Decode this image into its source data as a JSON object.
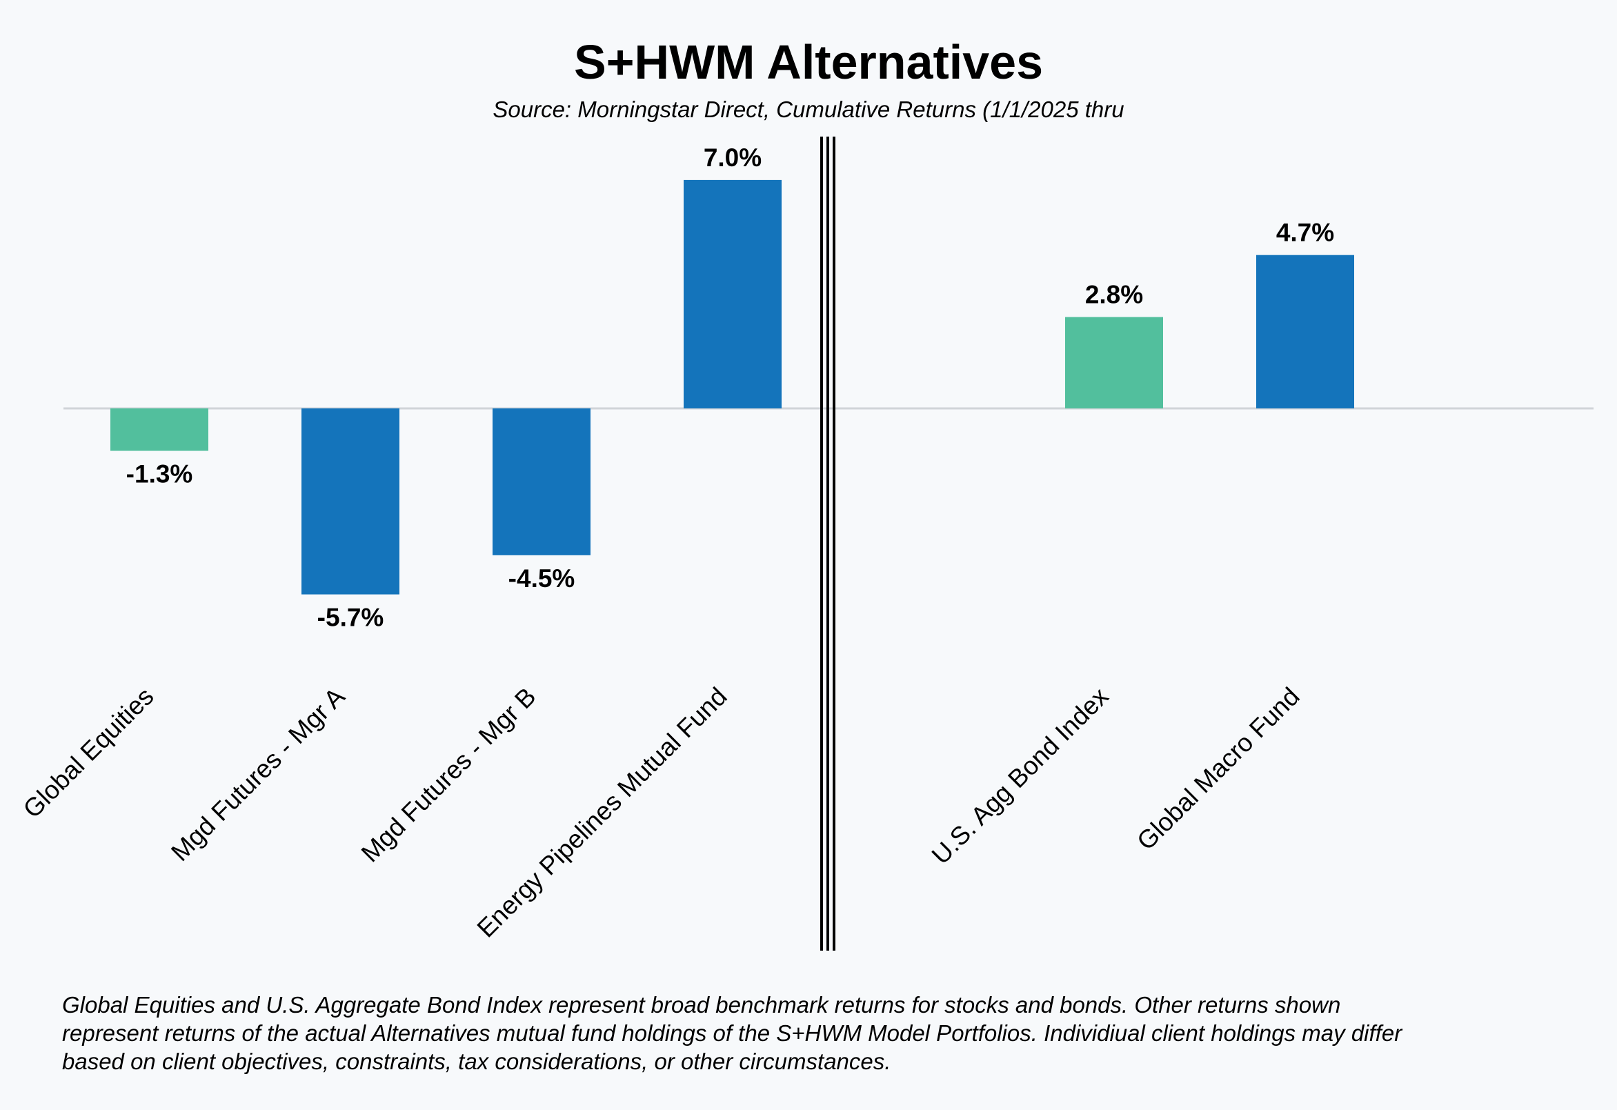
{
  "chart_data": {
    "type": "bar",
    "title": "S+HWM Alternatives",
    "subtitle": "Source: Morningstar Direct, Cumulative Returns (1/1/2025 thru",
    "categories": [
      "Global Equities",
      "Mgd Futures - Mgr A",
      "Mgd Futures - Mgr B",
      "Energy Pipelines Mutual Fund",
      "U.S. Agg Bond Index",
      "Global Macro Fund"
    ],
    "values": [
      -1.3,
      -5.7,
      -4.5,
      7.0,
      2.8,
      4.7
    ],
    "value_labels": [
      "-1.3%",
      "-5.7%",
      "-4.5%",
      "7.0%",
      "2.8%",
      "4.7%"
    ],
    "groups": [
      {
        "categories": [
          "Global Equities",
          "Mgd Futures - Mgr A",
          "Mgd Futures - Mgr B",
          "Energy Pipelines Mutual Fund"
        ]
      },
      {
        "categories": [
          "U.S. Agg Bond Index",
          "Global Macro Fund"
        ]
      }
    ],
    "bar_colors": [
      "#52bf9d",
      "#1474bb",
      "#1474bb",
      "#1474bb",
      "#52bf9d",
      "#1474bb"
    ],
    "ylim": [
      -9,
      8.5
    ],
    "xlabel": "",
    "ylabel": "",
    "grid": false,
    "legend": "none"
  },
  "footnote": "Global Equities and U.S. Aggregate Bond Index represent broad benchmark returns for stocks and bonds.  Other returns shown\nrepresent returns of the actual Alternatives mutual fund holdings of the S+HWM Model Portfolios.  Individiual client holdings may differ\nbased on client objectives, constraints, tax considerations, or other circumstances.",
  "colors": {
    "benchmark": "#52bf9d",
    "fund": "#1474bb",
    "zero_line": "#d0d4d8",
    "divider": "#000000",
    "background": "#f7f9fb"
  }
}
